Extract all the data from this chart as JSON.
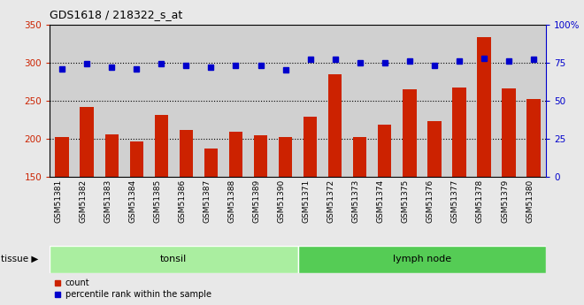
{
  "title": "GDS1618 / 218322_s_at",
  "samples": [
    "GSM51381",
    "GSM51382",
    "GSM51383",
    "GSM51384",
    "GSM51385",
    "GSM51386",
    "GSM51387",
    "GSM51388",
    "GSM51389",
    "GSM51390",
    "GSM51371",
    "GSM51372",
    "GSM51373",
    "GSM51374",
    "GSM51375",
    "GSM51376",
    "GSM51377",
    "GSM51378",
    "GSM51379",
    "GSM51380"
  ],
  "counts": [
    202,
    242,
    206,
    196,
    231,
    211,
    187,
    209,
    205,
    202,
    229,
    285,
    202,
    219,
    265,
    223,
    267,
    333,
    266,
    252
  ],
  "percentiles": [
    71,
    74,
    72,
    71,
    74,
    73,
    72,
    73,
    73,
    70,
    77,
    77,
    75,
    75,
    76,
    73,
    76,
    78,
    76,
    77
  ],
  "tissues": [
    "tonsil",
    "tonsil",
    "tonsil",
    "tonsil",
    "tonsil",
    "tonsil",
    "tonsil",
    "tonsil",
    "tonsil",
    "tonsil",
    "lymph node",
    "lymph node",
    "lymph node",
    "lymph node",
    "lymph node",
    "lymph node",
    "lymph node",
    "lymph node",
    "lymph node",
    "lymph node"
  ],
  "bar_color": "#cc2200",
  "dot_color": "#0000cc",
  "tonsil_color": "#aaeea0",
  "lymph_color": "#55cc55",
  "ylim_left": [
    150,
    350
  ],
  "ylim_right": [
    0,
    100
  ],
  "yticks_left": [
    150,
    200,
    250,
    300,
    350
  ],
  "yticks_right": [
    0,
    25,
    50,
    75,
    100
  ],
  "background_color": "#d0d0d0",
  "fig_color": "#e8e8e8",
  "grid_dotted_at": [
    200,
    250,
    300
  ]
}
